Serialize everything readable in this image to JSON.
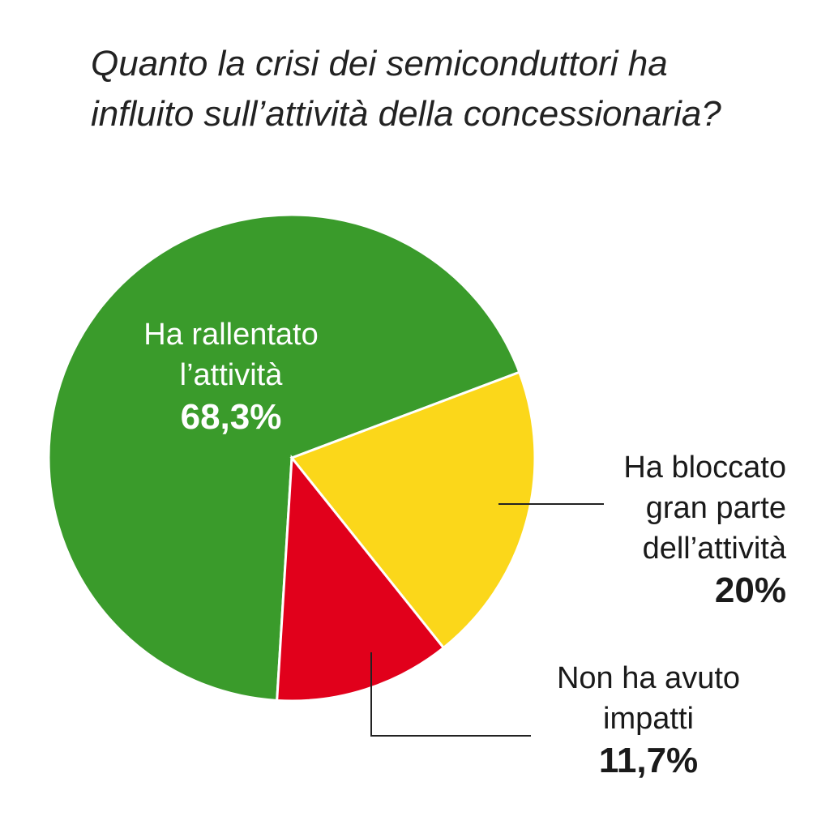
{
  "chart_data": {
    "type": "pie",
    "title": "Quanto la crisi dei semiconduttori ha influito sull’attività della concessionaria?",
    "categories": [
      "Ha rallentato l’attività",
      "Ha bloccato gran parte dell’attività",
      "Non ha avuto impatti"
    ],
    "values": [
      68.3,
      20,
      11.7
    ],
    "value_labels": [
      "68,3%",
      "20%",
      "11,7%"
    ],
    "colors": [
      "#3a9b2b",
      "#fbd71a",
      "#e1001b"
    ]
  }
}
